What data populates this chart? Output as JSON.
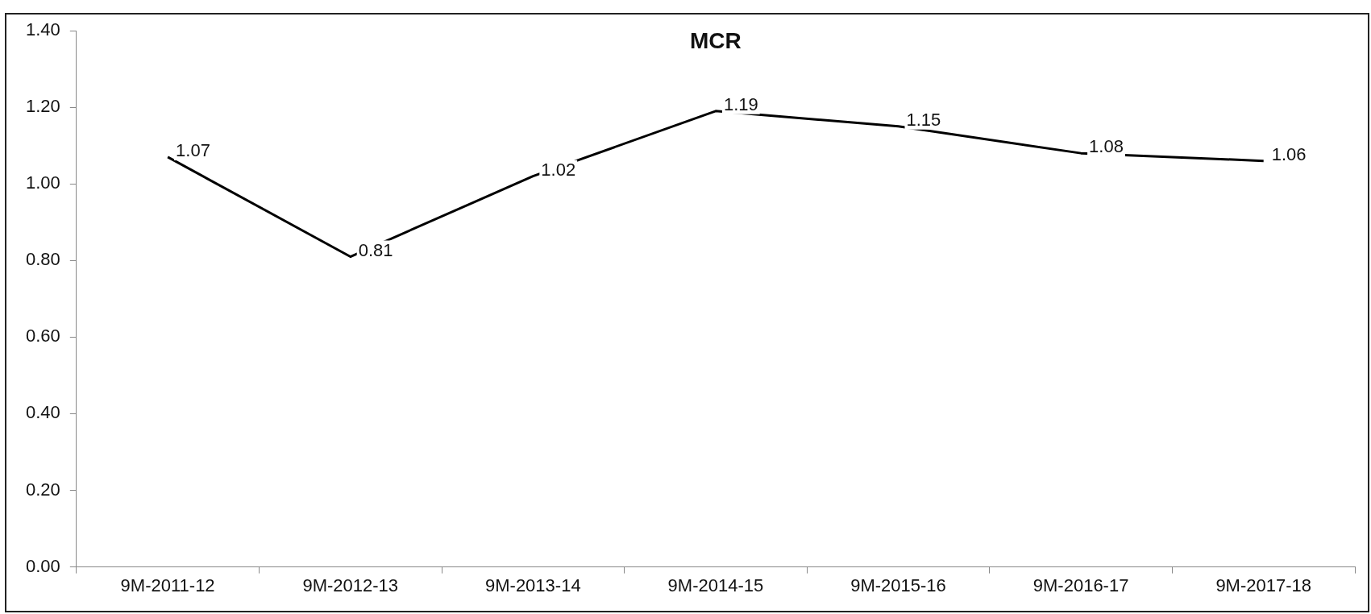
{
  "chart_data": {
    "type": "line",
    "title": "MCR",
    "categories": [
      "9M-2011-12",
      "9M-2012-13",
      "9M-2013-14",
      "9M-2014-15",
      "9M-2015-16",
      "9M-2016-17",
      "9M-2017-18"
    ],
    "series": [
      {
        "color": "#000000",
        "values": [
          1.07,
          0.81,
          1.02,
          1.19,
          1.15,
          1.08,
          1.06
        ]
      }
    ],
    "ylim": [
      0,
      1.4
    ],
    "yticks": [
      {
        "value": 0,
        "label": "0.00"
      },
      {
        "value": 0.2,
        "label": "0.20"
      },
      {
        "value": 0.4,
        "label": "0.40"
      },
      {
        "value": 0.6,
        "label": "0.60"
      },
      {
        "value": 0.8,
        "label": "0.80"
      },
      {
        "value": 1,
        "label": "1.00"
      },
      {
        "value": 1.2,
        "label": "1.20"
      },
      {
        "value": 1.4,
        "label": "1.40"
      }
    ],
    "grid": false,
    "legend": false,
    "marker": "none",
    "line_style": "solid",
    "data_labels": true
  }
}
